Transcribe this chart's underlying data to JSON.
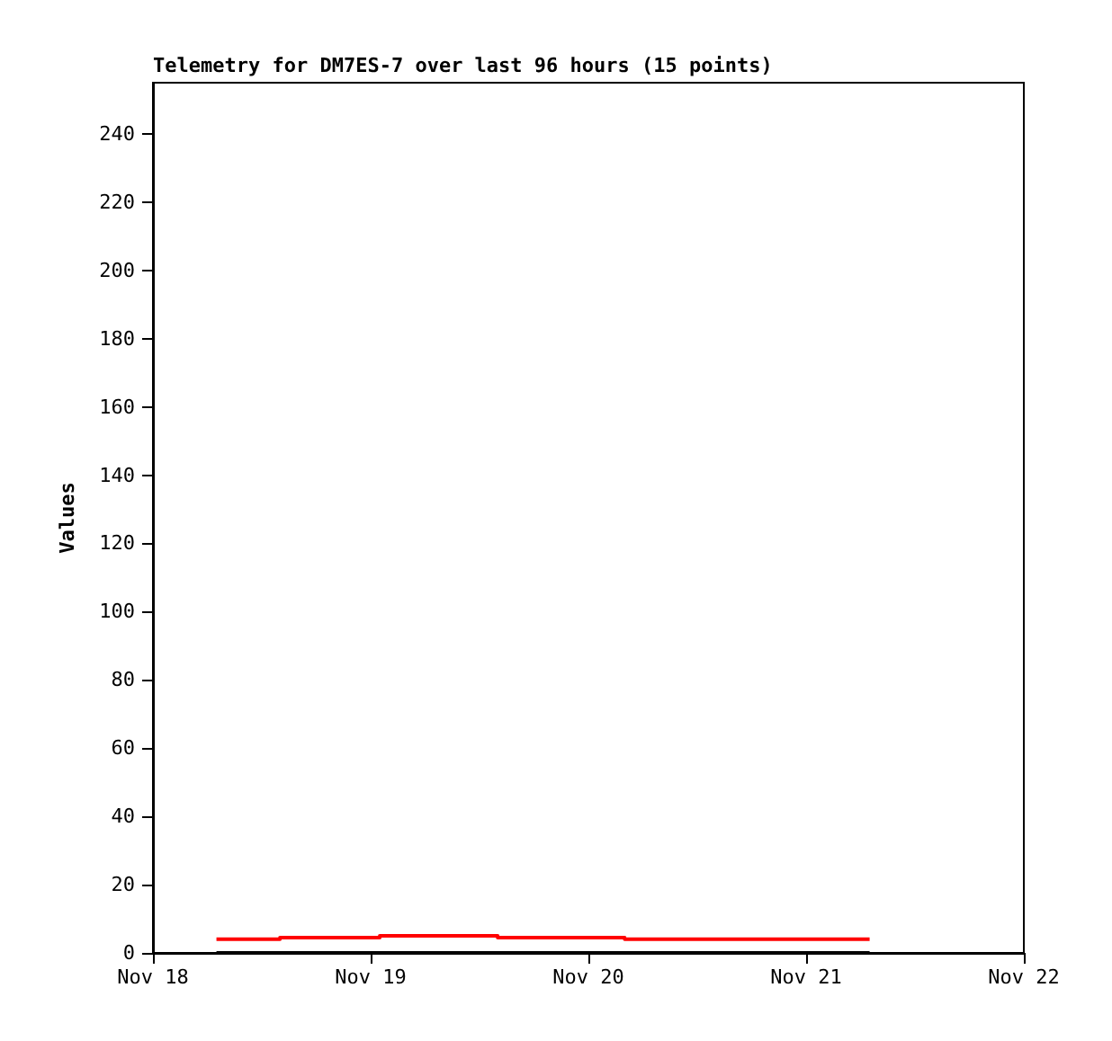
{
  "chart_data": {
    "type": "step",
    "title": "Telemetry for DM7ES-7 over last 96 hours (15 points)",
    "ylabel": "Values",
    "xlim": [
      "--11-18",
      "--11-22"
    ],
    "xticks": [
      {
        "value": "--11-18",
        "label": "Nov 18"
      },
      {
        "value": "--11-19",
        "label": "Nov 19"
      },
      {
        "value": "--11-20",
        "label": "Nov 20"
      },
      {
        "value": "--11-21",
        "label": "Nov 21"
      },
      {
        "value": "--11-22",
        "label": "Nov 22"
      }
    ],
    "ylim": [
      0,
      255
    ],
    "yticks": [
      0,
      20,
      40,
      60,
      80,
      100,
      120,
      140,
      160,
      180,
      200,
      220,
      240
    ],
    "series": [
      {
        "color": "#ff0000",
        "x": [
          "--11-18T07:00",
          "--11-18T14:00",
          "--11-19T01:00",
          "--11-19T14:00",
          "--11-20T04:00",
          "--11-21T07:00"
        ],
        "values": [
          4,
          4.5,
          5,
          4.5,
          4,
          4
        ]
      },
      {
        "color": "#000000",
        "x": [
          "--11-18T07:00",
          "--11-21T07:00"
        ],
        "values": [
          0,
          0
        ]
      }
    ],
    "marker": "none"
  }
}
